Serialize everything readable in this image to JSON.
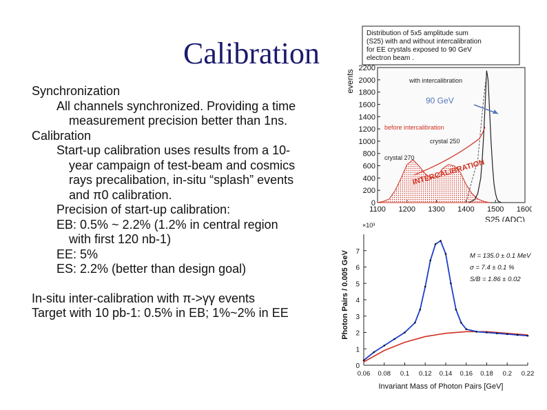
{
  "slide": {
    "title": "Calibration",
    "lines": [
      {
        "text": "Synchronization",
        "level": 1
      },
      {
        "text": "All channels synchronized. Providing a time",
        "level": 2
      },
      {
        "text": "measurement precision better than 1ns.",
        "level": 3
      },
      {
        "text": "Calibration",
        "level": 1
      },
      {
        "text": "Start-up calibration uses results from a 10-",
        "level": 2
      },
      {
        "text": "year campaign of test-beam and cosmics",
        "level": 3
      },
      {
        "text": "rays precalibation, in-situ “splash” events",
        "level": 3
      },
      {
        "text": "and π0 calibration.",
        "level": 3
      },
      {
        "text": "Precision of start-up calibration:",
        "level": 2
      },
      {
        "text": "EB: 0.5% ~ 2.2% (1.2% in central region",
        "level": 2
      },
      {
        "text": "with first 120 nb-1)",
        "level": 3
      },
      {
        "text": "EE: 5%",
        "level": 2
      },
      {
        "text": "ES: 2.2% (better than design goal)",
        "level": 2
      },
      {
        "text": "",
        "level": 0
      },
      {
        "text": "In-situ inter-calibration with π->γγ events",
        "level": 1
      },
      {
        "text": "Target with 10 pb-1: 0.5% in EB; 1%~2% in EE",
        "level": 1
      }
    ]
  },
  "colors": {
    "title": "#1a1a6e",
    "hist_red": "#d03020",
    "fit_blue": "#1a3fcc",
    "arrow_blue": "#5577bb"
  },
  "chart_data": [
    {
      "type": "line",
      "caption": "Distribution of 5x5 amplitude sum (S25) with and without intercalibration for EE crystals exposed to 90 GeV electron beam .",
      "xlabel": "S25 (ADC)",
      "ylabel": "events",
      "xlim": [
        1100,
        1600
      ],
      "ylim": [
        0,
        2200
      ],
      "xticks": [
        1100,
        1200,
        1300,
        1400,
        1500,
        1600
      ],
      "yticks": [
        0,
        200,
        400,
        600,
        800,
        1000,
        1200,
        1400,
        1600,
        1800,
        2000,
        2200
      ],
      "annotations": [
        "with intercalibration",
        "90 GeV",
        "before intercalibration",
        "crystal 250",
        "crystal 270",
        "INTERCALIBRATION"
      ],
      "series": [
        {
          "name": "with intercalibration",
          "x": [
            1410,
            1430,
            1440,
            1450,
            1455,
            1460,
            1465,
            1470,
            1475,
            1480,
            1485,
            1490,
            1495,
            1500,
            1505,
            1510,
            1520
          ],
          "y": [
            0,
            50,
            150,
            400,
            700,
            1100,
            1600,
            2150,
            2000,
            1500,
            1000,
            600,
            300,
            150,
            60,
            20,
            0
          ]
        },
        {
          "name": "before intercalibration",
          "x": [
            1100,
            1120,
            1140,
            1160,
            1180,
            1200,
            1220,
            1240,
            1260,
            1280,
            1300,
            1320,
            1340,
            1360,
            1380,
            1400,
            1420,
            1440,
            1460,
            1480
          ],
          "y": [
            0,
            20,
            60,
            200,
            400,
            620,
            700,
            600,
            480,
            400,
            420,
            550,
            620,
            600,
            500,
            300,
            150,
            60,
            20,
            0
          ]
        }
      ]
    },
    {
      "type": "scatter",
      "xlabel": "Invariant Mass of Photon Pairs [GeV]",
      "ylabel": "Photon Pairs / 0.005 GeV",
      "y_multiplier": "×10³",
      "xlim": [
        0.06,
        0.22
      ],
      "ylim": [
        0,
        8
      ],
      "xticks": [
        "0.06",
        "0.08",
        "0.1",
        "0.12",
        "0.14",
        "0.16",
        "0.18",
        "0.2",
        "0.22"
      ],
      "yticks": [
        0,
        1,
        2,
        3,
        4,
        5,
        6,
        7
      ],
      "fit_params": [
        "M = 135.0 ± 0.1 MeV",
        "σ = 7.4 ± 0.1 %",
        "S/B = 1.86 ± 0.02"
      ],
      "series": [
        {
          "name": "data",
          "x": [
            0.06,
            0.07,
            0.08,
            0.09,
            0.1,
            0.11,
            0.115,
            0.12,
            0.125,
            0.13,
            0.135,
            0.14,
            0.145,
            0.15,
            0.155,
            0.16,
            0.17,
            0.18,
            0.19,
            0.2,
            0.21,
            0.22
          ],
          "y": [
            0.3,
            0.8,
            1.2,
            1.6,
            2.0,
            2.6,
            3.4,
            4.8,
            6.4,
            7.4,
            7.6,
            6.8,
            5.0,
            3.4,
            2.6,
            2.2,
            2.05,
            2.0,
            1.95,
            1.9,
            1.85,
            1.8
          ]
        },
        {
          "name": "background",
          "x": [
            0.06,
            0.08,
            0.1,
            0.12,
            0.14,
            0.16,
            0.18,
            0.2,
            0.22
          ],
          "y": [
            0.2,
            0.9,
            1.4,
            1.75,
            1.95,
            2.05,
            2.05,
            1.95,
            1.85
          ]
        }
      ]
    }
  ]
}
